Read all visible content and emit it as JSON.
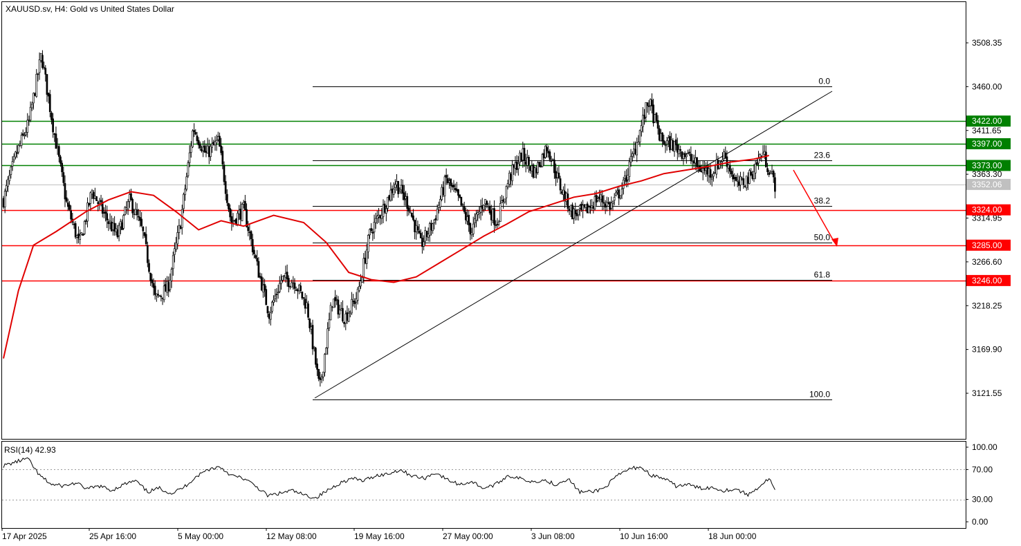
{
  "header": {
    "symbol": "XAUUSD.sv",
    "timeframe": "H4",
    "description": "Gold vs United States Dollar",
    "title": "XAUUSD.sv, H4:  Gold vs United States Dollar"
  },
  "colors": {
    "resistance": "#008000",
    "support": "#ff0000",
    "ma": "#e00000",
    "candle": "#000000",
    "current_price": "#c0c0c0",
    "arrow": "#ff0000"
  },
  "price_axis": {
    "labels": [
      "3508.35",
      "3460.00",
      "3411.65",
      "3363.30",
      "3314.95",
      "3266.60",
      "3218.25",
      "3169.90",
      "3121.55"
    ],
    "values": [
      3508.35,
      3460.0,
      3411.65,
      3363.3,
      3314.95,
      3266.6,
      3218.25,
      3169.9,
      3121.55
    ]
  },
  "levels": [
    {
      "value": 3422.0,
      "label": "3422.00",
      "kind": "resistance"
    },
    {
      "value": 3397.0,
      "label": "3397.00",
      "kind": "resistance"
    },
    {
      "value": 3373.0,
      "label": "3373.00",
      "kind": "resistance"
    },
    {
      "value": 3324.0,
      "label": "3324.00",
      "kind": "support"
    },
    {
      "value": 3285.0,
      "label": "3285.00",
      "kind": "support"
    },
    {
      "value": 3246.0,
      "label": "3246.00",
      "kind": "support"
    }
  ],
  "current_price": {
    "value": 3352.06,
    "label": "3352.06"
  },
  "fibonacci": {
    "high": 3460.0,
    "low": 3115.0,
    "levels": [
      {
        "ratio": 0.0,
        "label": "0.0"
      },
      {
        "ratio": 0.236,
        "label": "23.6"
      },
      {
        "ratio": 0.382,
        "label": "38.2"
      },
      {
        "ratio": 0.5,
        "label": "50.0"
      },
      {
        "ratio": 0.618,
        "label": "61.8"
      },
      {
        "ratio": 1.0,
        "label": "100.0"
      }
    ]
  },
  "time_axis": {
    "labels": [
      "17 Apr 2025",
      "25 Apr 16:00",
      "5 May 00:00",
      "12 May 08:00",
      "19 May 16:00",
      "27 May 00:00",
      "3 Jun 08:00",
      "10 Jun 16:00",
      "18 Jun 00:00"
    ]
  },
  "rsi": {
    "label": "RSI(14) 42.93",
    "period": 14,
    "current": 42.93,
    "axis_labels": [
      "100.00",
      "70.00",
      "30.00",
      "0.00"
    ],
    "axis_values": [
      100,
      70,
      30,
      0
    ]
  },
  "chart_data": {
    "type": "candlestick",
    "title": "XAUUSD.sv, H4:  Gold vs United States Dollar",
    "ylim": [
      3082,
      3535
    ],
    "x": [
      "17 Apr 2025",
      "25 Apr 16:00",
      "5 May 00:00",
      "12 May 08:00",
      "19 May 16:00",
      "27 May 00:00",
      "3 Jun 08:00",
      "10 Jun 16:00",
      "18 Jun 00:00"
    ],
    "price_path": [
      3335,
      3385,
      3420,
      3495,
      3410,
      3330,
      3285,
      3345,
      3318,
      3295,
      3335,
      3300,
      3225,
      3238,
      3310,
      3415,
      3385,
      3400,
      3310,
      3325,
      3265,
      3210,
      3248,
      3245,
      3218,
      3125,
      3225,
      3205,
      3230,
      3300,
      3325,
      3355,
      3330,
      3285,
      3310,
      3358,
      3335,
      3300,
      3335,
      3310,
      3360,
      3385,
      3365,
      3395,
      3350,
      3320,
      3322,
      3338,
      3328,
      3350,
      3395,
      3445,
      3400,
      3395,
      3385,
      3370,
      3365,
      3385,
      3350,
      3360,
      3388,
      3352
    ],
    "ma_series": [
      [
        0,
        3160
      ],
      [
        10,
        3235
      ],
      [
        20,
        3285
      ],
      [
        35,
        3300
      ],
      [
        55,
        3322
      ],
      [
        70,
        3335
      ],
      [
        85,
        3344
      ],
      [
        100,
        3340
      ],
      [
        115,
        3322
      ],
      [
        130,
        3302
      ],
      [
        145,
        3312
      ],
      [
        160,
        3306
      ],
      [
        180,
        3318
      ],
      [
        200,
        3310
      ],
      [
        215,
        3288
      ],
      [
        230,
        3255
      ],
      [
        245,
        3247
      ],
      [
        260,
        3244
      ],
      [
        275,
        3250
      ],
      [
        290,
        3265
      ],
      [
        305,
        3280
      ],
      [
        320,
        3295
      ],
      [
        335,
        3308
      ],
      [
        350,
        3322
      ],
      [
        365,
        3330
      ],
      [
        380,
        3338
      ],
      [
        395,
        3342
      ],
      [
        410,
        3350
      ],
      [
        425,
        3356
      ],
      [
        440,
        3364
      ],
      [
        455,
        3368
      ],
      [
        470,
        3372
      ],
      [
        485,
        3377
      ],
      [
        500,
        3380
      ],
      [
        510,
        3384
      ]
    ],
    "rsi_series": [
      [
        0,
        75
      ],
      [
        8,
        80
      ],
      [
        16,
        85
      ],
      [
        24,
        62
      ],
      [
        32,
        50
      ],
      [
        40,
        48
      ],
      [
        48,
        52
      ],
      [
        56,
        44
      ],
      [
        64,
        48
      ],
      [
        72,
        42
      ],
      [
        80,
        50
      ],
      [
        88,
        55
      ],
      [
        96,
        40
      ],
      [
        104,
        45
      ],
      [
        112,
        38
      ],
      [
        120,
        46
      ],
      [
        128,
        60
      ],
      [
        136,
        70
      ],
      [
        144,
        74
      ],
      [
        152,
        62
      ],
      [
        160,
        58
      ],
      [
        168,
        48
      ],
      [
        176,
        35
      ],
      [
        184,
        38
      ],
      [
        192,
        42
      ],
      [
        200,
        36
      ],
      [
        208,
        32
      ],
      [
        216,
        42
      ],
      [
        224,
        52
      ],
      [
        232,
        58
      ],
      [
        240,
        55
      ],
      [
        248,
        62
      ],
      [
        256,
        64
      ],
      [
        264,
        70
      ],
      [
        272,
        62
      ],
      [
        280,
        58
      ],
      [
        288,
        66
      ],
      [
        296,
        56
      ],
      [
        304,
        50
      ],
      [
        312,
        54
      ],
      [
        320,
        45
      ],
      [
        328,
        50
      ],
      [
        336,
        62
      ],
      [
        344,
        58
      ],
      [
        352,
        54
      ],
      [
        360,
        56
      ],
      [
        368,
        50
      ],
      [
        376,
        58
      ],
      [
        384,
        40
      ],
      [
        392,
        40
      ],
      [
        400,
        45
      ],
      [
        408,
        60
      ],
      [
        416,
        70
      ],
      [
        424,
        74
      ],
      [
        432,
        62
      ],
      [
        440,
        58
      ],
      [
        448,
        48
      ],
      [
        456,
        50
      ],
      [
        464,
        45
      ],
      [
        472,
        46
      ],
      [
        480,
        42
      ],
      [
        488,
        44
      ],
      [
        496,
        36
      ],
      [
        504,
        48
      ],
      [
        510,
        58
      ],
      [
        514,
        43
      ]
    ]
  }
}
